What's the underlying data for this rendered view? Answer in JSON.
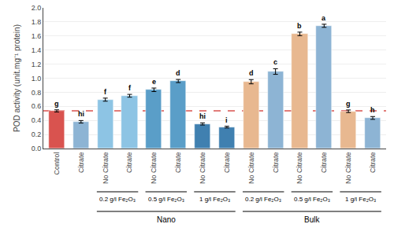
{
  "chart_data": {
    "type": "bar",
    "categories": [
      "Control",
      "Citrate",
      "No Citrate",
      "Citrate",
      "No Citrate",
      "Citrate",
      "No Citrate",
      "Citrate",
      "No Citrate",
      "Citrate",
      "No Citrate",
      "Citrate",
      "No Citrate",
      "Citrate"
    ],
    "values": [
      0.535,
      0.38,
      0.695,
      0.75,
      0.835,
      0.96,
      0.35,
      0.305,
      0.95,
      1.095,
      1.63,
      1.745,
      0.53,
      0.435
    ],
    "errors": [
      0.015,
      0.018,
      0.022,
      0.02,
      0.025,
      0.022,
      0.015,
      0.012,
      0.03,
      0.04,
      0.025,
      0.022,
      0.018,
      0.02
    ],
    "colors": [
      "#D9534F",
      "#8DB4D4",
      "#8DC4E4",
      "#8DC4E4",
      "#5A9EC8",
      "#5A9EC8",
      "#4080B0",
      "#4080B0",
      "#E8B890",
      "#8DB4D4",
      "#E8B890",
      "#8DB4D4",
      "#E8B890",
      "#8DB4D4"
    ],
    "letters": [
      "g",
      "hi",
      "f",
      "f",
      "e",
      "d",
      "hi",
      "i",
      "d",
      "c",
      "b",
      "a",
      "g",
      "h"
    ],
    "ylabel": "POD activity (unit.mg⁻¹ protein)",
    "ylim": [
      0,
      2.0
    ],
    "yticks": [
      {
        "value": 0,
        "label": "0.0"
      },
      0.2,
      0.4,
      0.6,
      0.8,
      {
        "value": 1.0,
        "label": "1.0"
      },
      1.2,
      1.4,
      1.6,
      1.8,
      {
        "value": 2.0,
        "label": "2.0"
      }
    ],
    "grid": true,
    "reference_line": {
      "y": 0.535,
      "color": "#D9534F",
      "line_style": "dashed"
    },
    "subgroups": [
      {
        "start": 2,
        "end": 3,
        "label": "0.2 g/l Fe₂O₃"
      },
      {
        "start": 4,
        "end": 5,
        "label": "0.5 g/l Fe₂O₃"
      },
      {
        "start": 6,
        "end": 7,
        "label": "1 g/l Fe₂O₃"
      },
      {
        "start": 8,
        "end": 9,
        "label": "0.2 g/l Fe₂O₃"
      },
      {
        "start": 10,
        "end": 11,
        "label": "0.5 g/l Fe₂O₃"
      },
      {
        "start": 12,
        "end": 13,
        "label": "1 g/l Fe₂O₃"
      }
    ],
    "groups": [
      {
        "start": 2,
        "end": 7,
        "label": "Nano"
      },
      {
        "start": 8,
        "end": 13,
        "label": "Bulk"
      }
    ]
  }
}
